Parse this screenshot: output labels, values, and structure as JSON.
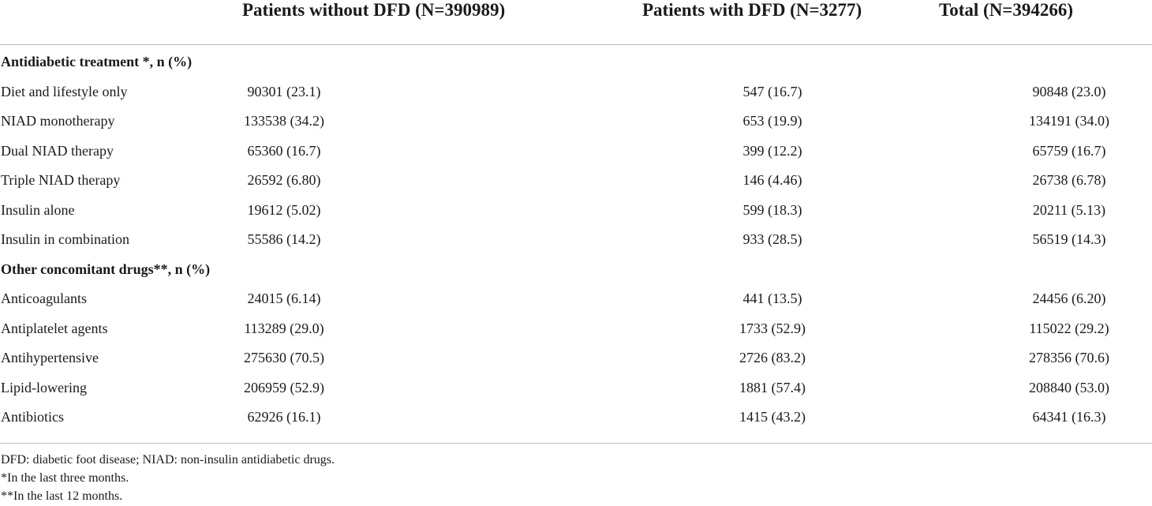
{
  "table": {
    "headers": [
      "Patients without DFD (N=390989)",
      "Patients with DFD (N=3277)",
      "Total (N=394266)"
    ],
    "rows": [
      {
        "label": "Antidiabetic treatment *, n (%)",
        "section": true,
        "values": [
          "",
          "",
          ""
        ]
      },
      {
        "label": "Diet and lifestyle only",
        "section": false,
        "values": [
          "90301 (23.1)",
          "547 (16.7)",
          "90848 (23.0)"
        ]
      },
      {
        "label": "NIAD monotherapy",
        "section": false,
        "values": [
          "133538 (34.2)",
          "653 (19.9)",
          "134191 (34.0)"
        ]
      },
      {
        "label": "Dual NIAD therapy",
        "section": false,
        "values": [
          "65360 (16.7)",
          "399 (12.2)",
          "65759 (16.7)"
        ]
      },
      {
        "label": "Triple NIAD therapy",
        "section": false,
        "values": [
          "26592 (6.80)",
          "146 (4.46)",
          "26738 (6.78)"
        ]
      },
      {
        "label": "Insulin alone",
        "section": false,
        "values": [
          "19612 (5.02)",
          "599 (18.3)",
          "20211 (5.13)"
        ]
      },
      {
        "label": "Insulin in combination",
        "section": false,
        "values": [
          "55586 (14.2)",
          "933 (28.5)",
          "56519 (14.3)"
        ]
      },
      {
        "label": "Other concomitant drugs**, n (%)",
        "section": true,
        "values": [
          "",
          "",
          ""
        ]
      },
      {
        "label": "Anticoagulants",
        "section": false,
        "values": [
          "24015 (6.14)",
          "441 (13.5)",
          "24456 (6.20)"
        ]
      },
      {
        "label": "Antiplatelet agents",
        "section": false,
        "values": [
          "113289 (29.0)",
          "1733 (52.9)",
          "115022 (29.2)"
        ]
      },
      {
        "label": "Antihypertensive",
        "section": false,
        "values": [
          "275630 (70.5)",
          "2726 (83.2)",
          "278356 (70.6)"
        ]
      },
      {
        "label": "Lipid-lowering",
        "section": false,
        "values": [
          "206959 (52.9)",
          "1881 (57.4)",
          "208840 (53.0)"
        ]
      },
      {
        "label": "Antibiotics",
        "section": false,
        "values": [
          "62926 (16.1)",
          "1415 (43.2)",
          "64341 (16.3)"
        ]
      }
    ]
  },
  "footnotes": [
    "DFD: diabetic foot disease; NIAD: non-insulin antidiabetic drugs.",
    "*In the last three months.",
    "**In the last 12 months."
  ]
}
